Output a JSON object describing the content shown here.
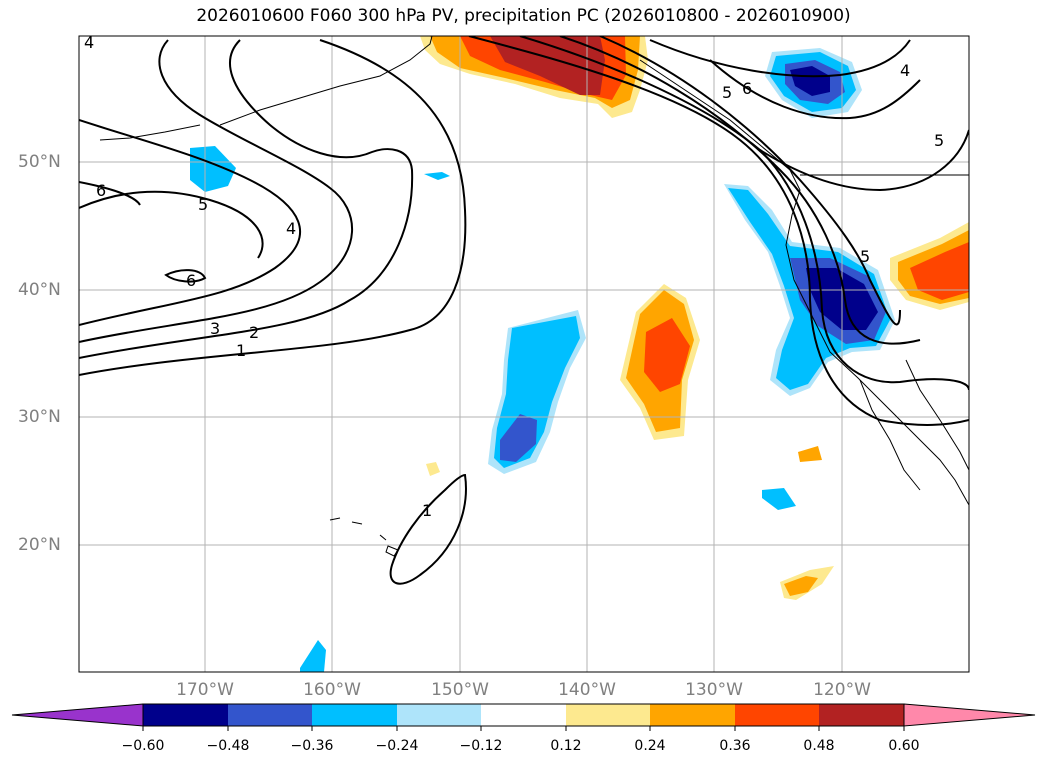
{
  "title": "2026010600 F060 300 hPa PV, precipitation PC (2026010800 - 2026010900)",
  "map": {
    "lat_labels": [
      "50°N",
      "40°N",
      "30°N",
      "20°N"
    ],
    "lon_labels": [
      "170°W",
      "160°W",
      "150°W",
      "140°W",
      "130°W",
      "120°W"
    ],
    "contour_labels": [
      "4",
      "6",
      "5",
      "4",
      "6",
      "3",
      "2",
      "1",
      "1",
      "6",
      "5",
      "4",
      "5",
      "5"
    ]
  },
  "colorbar": {
    "ticks": [
      "−0.60",
      "−0.48",
      "−0.36",
      "−0.24",
      "−0.12",
      "0.12",
      "0.24",
      "0.36",
      "0.48",
      "0.60"
    ],
    "colors": [
      "#9933cc",
      "#00008b",
      "#3355cc",
      "#00bfff",
      "#aee4fa",
      "#ffffff",
      "#fde98f",
      "#ffa500",
      "#ff4500",
      "#b22222",
      "#ff88aa"
    ]
  }
}
